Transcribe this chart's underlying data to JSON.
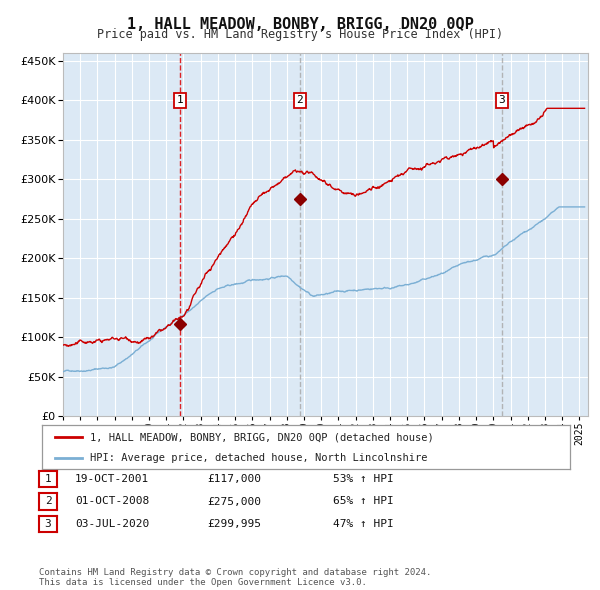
{
  "title": "1, HALL MEADOW, BONBY, BRIGG, DN20 0QP",
  "subtitle": "Price paid vs. HM Land Registry's House Price Index (HPI)",
  "background_color": "#ffffff",
  "plot_bg_color": "#dce9f5",
  "grid_color": "#ffffff",
  "red_line_color": "#cc0000",
  "blue_line_color": "#7bafd4",
  "vline_color_1": "#dd0000",
  "vline_color_23": "#aaaaaa",
  "sale_marker_color": "#8b0000",
  "ylim": [
    0,
    460000
  ],
  "yticks": [
    0,
    50000,
    100000,
    150000,
    200000,
    250000,
    300000,
    350000,
    400000,
    450000
  ],
  "sales": [
    {
      "label": "1",
      "date_num": 2001.8,
      "price": 117000,
      "date_str": "19-OCT-2001",
      "price_str": "£117,000",
      "hpi_str": "53% ↑ HPI"
    },
    {
      "label": "2",
      "date_num": 2008.75,
      "price": 275000,
      "date_str": "01-OCT-2008",
      "price_str": "£275,000",
      "hpi_str": "65% ↑ HPI"
    },
    {
      "label": "3",
      "date_num": 2020.5,
      "price": 299995,
      "date_str": "03-JUL-2020",
      "price_str": "£299,995",
      "hpi_str": "47% ↑ HPI"
    }
  ],
  "legend_line1": "1, HALL MEADOW, BONBY, BRIGG, DN20 0QP (detached house)",
  "legend_line2": "HPI: Average price, detached house, North Lincolnshire",
  "footnote": "Contains HM Land Registry data © Crown copyright and database right 2024.\nThis data is licensed under the Open Government Licence v3.0.",
  "xmin": 1995.0,
  "xmax": 2025.5
}
